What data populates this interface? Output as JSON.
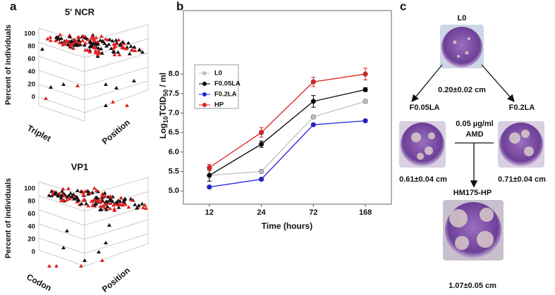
{
  "panel_letters": [
    "a",
    "b",
    "c"
  ],
  "panel_a": {
    "plots": [
      {
        "title": "5' NCR",
        "ylabel": "Percent of individuals",
        "axis1": "Triplet",
        "axis2": "Position",
        "yticks": [
          100,
          80,
          60,
          40,
          20,
          0
        ]
      },
      {
        "title": "VP1",
        "ylabel": "Percent of individuals",
        "axis1": "Codon",
        "axis2": "Position",
        "yticks": [
          100,
          80,
          60,
          40,
          20,
          0
        ]
      }
    ]
  },
  "chart_data": {
    "type": "line",
    "categories": [
      "12",
      "24",
      "72",
      "168"
    ],
    "xlabel": "Time (hours)",
    "ylabel": [
      "Log",
      "10",
      "TCID",
      "50",
      " / ml"
    ],
    "ylim": [
      4.66,
      9.63
    ],
    "yticks": [
      {
        "value": 5,
        "label": "5.0"
      },
      5.5,
      {
        "value": 6,
        "label": "6.0"
      },
      6.5,
      {
        "value": 7,
        "label": "7.0"
      },
      7.5,
      {
        "value": 8,
        "label": "8.0"
      }
    ],
    "legend": "top-left",
    "series": [
      {
        "name": "L0",
        "color": "#c0c0c0",
        "values": [
          5.4,
          5.5,
          6.9,
          7.3
        ],
        "errors": [
          0.15,
          0.05,
          0.05,
          0.05
        ]
      },
      {
        "name": "F0.05LA",
        "color": "#000000",
        "values": [
          5.4,
          6.2,
          7.3,
          7.6
        ],
        "errors": [
          0.15,
          0.08,
          0.15,
          0.05
        ]
      },
      {
        "name": "F0.2LA",
        "color": "#1f1fe0",
        "values": [
          5.1,
          5.3,
          6.7,
          6.8
        ],
        "errors": [
          0.04,
          0.04,
          0.02,
          0.04
        ]
      },
      {
        "name": "HP",
        "color": "#e02020",
        "values": [
          5.6,
          6.5,
          7.8,
          8.0
        ],
        "errors": [
          0.08,
          0.12,
          0.12,
          0.15
        ]
      }
    ]
  },
  "panel_c": {
    "L0": {
      "label": "L0",
      "size": "0.20±0.02 cm"
    },
    "F005": {
      "label": "F0.05LA",
      "size": "0.61±0.04 cm"
    },
    "F02": {
      "label": "F0.2LA",
      "size": "0.71±0.04 cm"
    },
    "treatment": [
      "0.05 µg/ml",
      "AMD"
    ],
    "HP": {
      "label": "HM175-HP",
      "size": "1.07±0.05 cm"
    }
  }
}
